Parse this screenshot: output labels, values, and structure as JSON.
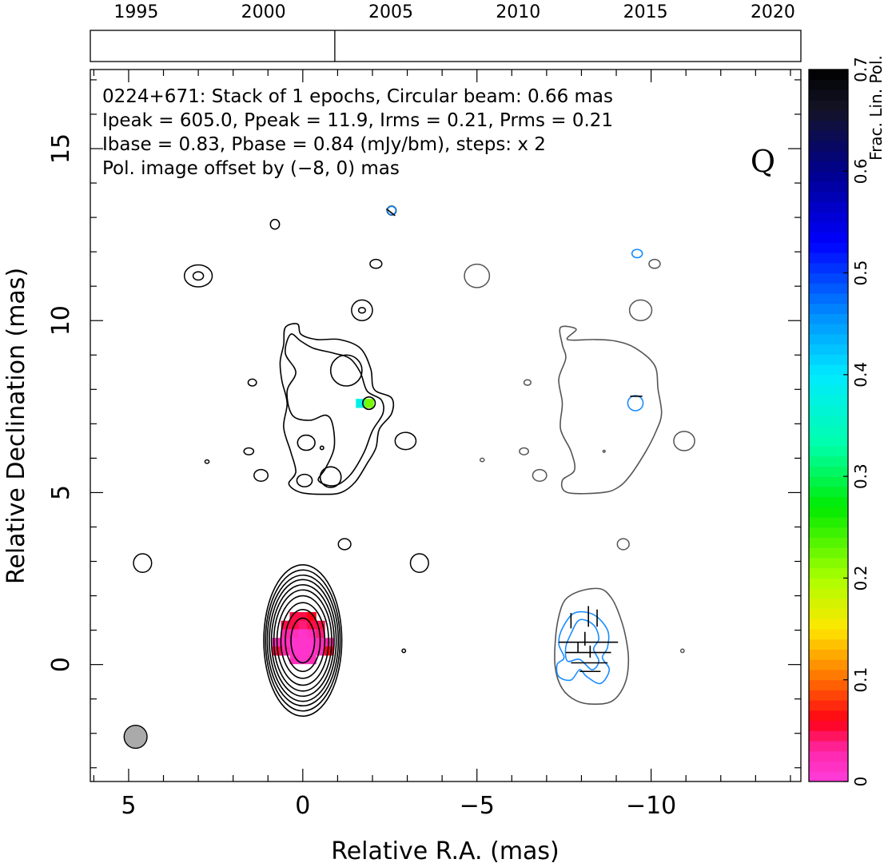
{
  "chart_data": {
    "type": "contour_map",
    "source": "0224+671",
    "band": "Q",
    "info_lines": [
      "0224+671: Stack of 1 epochs, Circular beam: 0.66 mas",
      "Ipeak = 605.0, Ppeak = 11.9, Irms = 0.21, Prms = 0.21",
      "Ibase = 0.83, Pbase = 0.84 (mJy/bm), steps: x 2"
    ],
    "offset_note": "Pol. image offset by (−8, 0) mas",
    "xlabel": "Relative R.A. (mas)",
    "ylabel": "Relative Declination (mas)",
    "xlim": [
      6.1,
      -14.3
    ],
    "ylim": [
      -3.4,
      17.3
    ],
    "x_ticks": [
      {
        "value": 5,
        "label": "5"
      },
      {
        "value": 0,
        "label": "0"
      },
      {
        "value": -5,
        "label": "−5"
      },
      {
        "value": -10,
        "label": "−10"
      }
    ],
    "y_ticks": [
      {
        "value": 0,
        "label": "0"
      },
      {
        "value": 5,
        "label": "5"
      },
      {
        "value": 10,
        "label": "10"
      },
      {
        "value": 15,
        "label": "15"
      }
    ],
    "beam": {
      "x": 4.8,
      "y": -2.1,
      "diameter_mas": 0.66
    },
    "timeline": {
      "xlim": [
        1993.2,
        2021.1
      ],
      "ticks": [
        {
          "value": 1995,
          "label": "1995"
        },
        {
          "value": 2000,
          "label": "2000"
        },
        {
          "value": 2005,
          "label": "2005"
        },
        {
          "value": 2010,
          "label": "2010"
        },
        {
          "value": 2015,
          "label": "2015"
        },
        {
          "value": 2020,
          "label": "2020"
        }
      ],
      "epochs": [
        2002.8
      ]
    },
    "colorbar": {
      "label": "Frac. Lin. Pol.",
      "range": [
        0,
        0.7
      ],
      "ticks": [
        {
          "value": 0,
          "label": "0"
        },
        {
          "value": 0.1,
          "label": "0.1"
        },
        {
          "value": 0.2,
          "label": "0.2"
        },
        {
          "value": 0.3,
          "label": "0.3"
        },
        {
          "value": 0.4,
          "label": "0.4"
        },
        {
          "value": 0.5,
          "label": "0.5"
        },
        {
          "value": 0.6,
          "label": "0.6"
        },
        {
          "value": 0.7,
          "label": "0.7"
        }
      ]
    },
    "colors": {
      "stokes_i_contour": "#000000",
      "offset_i_contour": "#555555",
      "polarization_contour": "#1a8cff",
      "evpa_tick": "#000000",
      "note_text": "#1a8cff",
      "beam_fill": "#aaaaaa"
    },
    "core": {
      "x": 0,
      "y": 0.7,
      "rx_mas": [
        0.34,
        0.5,
        0.63,
        0.74,
        0.83,
        0.9,
        0.96,
        1.02,
        1.07,
        1.12
      ],
      "ry_mas": [
        0.65,
        0.9,
        1.1,
        1.3,
        1.47,
        1.62,
        1.77,
        1.9,
        2.05,
        2.2
      ]
    },
    "polarized_core_pixels": [
      {
        "x": 0.25,
        "y": 1.4,
        "frac": 0.05
      },
      {
        "x": 0.0,
        "y": 1.4,
        "frac": 0.05
      },
      {
        "x": -0.25,
        "y": 1.4,
        "frac": 0.06
      },
      {
        "x": 0.5,
        "y": 1.15,
        "frac": 0.05
      },
      {
        "x": 0.25,
        "y": 1.15,
        "frac": 0.05
      },
      {
        "x": 0.0,
        "y": 1.15,
        "frac": 0.04
      },
      {
        "x": -0.25,
        "y": 1.15,
        "frac": 0.05
      },
      {
        "x": -0.5,
        "y": 1.15,
        "frac": 0.05
      },
      {
        "x": 0.5,
        "y": 0.9,
        "frac": 0.03
      },
      {
        "x": 0.25,
        "y": 0.9,
        "frac": 0.02
      },
      {
        "x": 0.0,
        "y": 0.9,
        "frac": 0.01
      },
      {
        "x": -0.25,
        "y": 0.9,
        "frac": 0.02
      },
      {
        "x": -0.5,
        "y": 0.9,
        "frac": 0.04
      },
      {
        "x": 0.75,
        "y": 0.65,
        "frac": 0.02
      },
      {
        "x": 0.5,
        "y": 0.65,
        "frac": 0.02
      },
      {
        "x": 0.25,
        "y": 0.65,
        "frac": 0.01
      },
      {
        "x": 0.0,
        "y": 0.65,
        "frac": 0.01
      },
      {
        "x": -0.25,
        "y": 0.65,
        "frac": 0.01
      },
      {
        "x": -0.5,
        "y": 0.65,
        "frac": 0.02
      },
      {
        "x": -0.75,
        "y": 0.65,
        "frac": 0.03
      },
      {
        "x": 0.75,
        "y": 0.4,
        "frac": 0.05
      },
      {
        "x": 0.5,
        "y": 0.4,
        "frac": 0.03
      },
      {
        "x": 0.25,
        "y": 0.4,
        "frac": 0.01
      },
      {
        "x": 0.0,
        "y": 0.4,
        "frac": 0.01
      },
      {
        "x": -0.25,
        "y": 0.4,
        "frac": 0.01
      },
      {
        "x": -0.5,
        "y": 0.4,
        "frac": 0.02
      },
      {
        "x": -0.75,
        "y": 0.4,
        "frac": 0.06
      },
      {
        "x": 0.25,
        "y": 0.15,
        "frac": 0.02
      },
      {
        "x": 0.0,
        "y": 0.15,
        "frac": 0.01
      },
      {
        "x": -0.25,
        "y": 0.15,
        "frac": 0.02
      },
      {
        "x": -1.65,
        "y": 7.6,
        "frac": 0.38
      },
      {
        "x": -1.9,
        "y": 7.6,
        "frac": 0.22
      }
    ],
    "jet_outer_contour": [
      [
        0.5,
        9.8
      ],
      [
        0.15,
        9.9
      ],
      [
        0.05,
        9.6
      ],
      [
        -0.4,
        9.45
      ],
      [
        -1.05,
        9.45
      ],
      [
        -1.65,
        9.2
      ],
      [
        -1.95,
        8.6
      ],
      [
        -2.05,
        8.0
      ],
      [
        -2.55,
        7.75
      ],
      [
        -2.55,
        7.3
      ],
      [
        -2.2,
        6.85
      ],
      [
        -2.1,
        6.3
      ],
      [
        -1.85,
        5.85
      ],
      [
        -1.5,
        5.3
      ],
      [
        -1.1,
        5.0
      ],
      [
        -0.6,
        4.95
      ],
      [
        0.05,
        5.0
      ],
      [
        0.4,
        5.25
      ],
      [
        0.2,
        5.6
      ],
      [
        0.35,
        6.2
      ],
      [
        0.55,
        6.9
      ],
      [
        0.45,
        7.6
      ],
      [
        0.6,
        8.25
      ],
      [
        0.65,
        8.8
      ],
      [
        0.55,
        9.3
      ],
      [
        0.5,
        9.8
      ]
    ],
    "jet_inner_contour": [
      [
        0.35,
        9.6
      ],
      [
        0.05,
        9.4
      ],
      [
        -0.3,
        9.2
      ],
      [
        -0.9,
        9.05
      ],
      [
        -1.35,
        8.9
      ],
      [
        -1.65,
        8.5
      ],
      [
        -1.85,
        7.95
      ],
      [
        -2.25,
        7.7
      ],
      [
        -2.3,
        7.3
      ],
      [
        -2.0,
        6.8
      ],
      [
        -1.75,
        6.15
      ],
      [
        -1.35,
        5.5
      ],
      [
        -0.9,
        5.2
      ],
      [
        -0.45,
        5.35
      ],
      [
        -0.65,
        5.7
      ],
      [
        -0.9,
        6.3
      ],
      [
        -0.85,
        7.0
      ],
      [
        -0.65,
        7.25
      ],
      [
        -0.2,
        7.1
      ],
      [
        0.3,
        7.25
      ],
      [
        0.45,
        7.95
      ],
      [
        0.2,
        8.5
      ],
      [
        0.5,
        9.05
      ],
      [
        0.35,
        9.6
      ]
    ],
    "jet_small_loops": [
      {
        "x": -1.25,
        "y": 8.55,
        "rx": 0.45,
        "ry": 0.45
      },
      {
        "x": -0.1,
        "y": 6.45,
        "rx": 0.25,
        "ry": 0.22
      },
      {
        "x": -0.05,
        "y": 5.35,
        "rx": 0.22,
        "ry": 0.18
      },
      {
        "x": -0.8,
        "y": 5.45,
        "rx": 0.3,
        "ry": 0.3
      },
      {
        "x": -1.9,
        "y": 7.6,
        "rx": 0.18,
        "ry": 0.18
      },
      {
        "x": -0.55,
        "y": 6.3,
        "rx": 0.05,
        "ry": 0.05
      }
    ],
    "noise_blobs_i": [
      {
        "x": 3.0,
        "y": 11.3,
        "rx": 0.4,
        "ry": 0.32
      },
      {
        "x": 3.0,
        "y": 11.3,
        "rx": 0.15,
        "ry": 0.12
      },
      {
        "x": 0.8,
        "y": 12.8,
        "rx": 0.13,
        "ry": 0.14
      },
      {
        "x": -2.1,
        "y": 11.65,
        "rx": 0.17,
        "ry": 0.13
      },
      {
        "x": -1.7,
        "y": 10.3,
        "rx": 0.3,
        "ry": 0.3
      },
      {
        "x": -1.7,
        "y": 10.3,
        "rx": 0.1,
        "ry": 0.08
      },
      {
        "x": -2.55,
        "y": 13.2,
        "rx": 0.13,
        "ry": 0.13
      },
      {
        "x": 1.45,
        "y": 8.2,
        "rx": 0.12,
        "ry": 0.1
      },
      {
        "x": 1.55,
        "y": 6.2,
        "rx": 0.14,
        "ry": 0.1
      },
      {
        "x": 2.75,
        "y": 5.9,
        "rx": 0.06,
        "ry": 0.05
      },
      {
        "x": 1.2,
        "y": 5.5,
        "rx": 0.2,
        "ry": 0.17
      },
      {
        "x": -2.95,
        "y": 6.5,
        "rx": 0.3,
        "ry": 0.25
      },
      {
        "x": -1.2,
        "y": 3.5,
        "rx": 0.18,
        "ry": 0.16
      },
      {
        "x": 4.6,
        "y": 2.95,
        "rx": 0.26,
        "ry": 0.27
      },
      {
        "x": -3.35,
        "y": 2.95,
        "rx": 0.26,
        "ry": 0.27
      },
      {
        "x": -2.9,
        "y": 0.4,
        "rx": 0.05,
        "ry": 0.05
      },
      {
        "x": -5.15,
        "y": 5.95,
        "rx": 0.06,
        "ry": 0.05
      },
      {
        "x": -6.45,
        "y": 8.2,
        "rx": 0.1,
        "ry": 0.08
      },
      {
        "x": -6.35,
        "y": 6.2,
        "rx": 0.13,
        "ry": 0.1
      },
      {
        "x": -6.8,
        "y": 5.5,
        "rx": 0.2,
        "ry": 0.17
      },
      {
        "x": -5.0,
        "y": 11.3,
        "rx": 0.36,
        "ry": 0.34
      },
      {
        "x": -9.7,
        "y": 10.3,
        "rx": 0.32,
        "ry": 0.3
      },
      {
        "x": -10.1,
        "y": 11.65,
        "rx": 0.16,
        "ry": 0.13
      },
      {
        "x": -10.95,
        "y": 6.5,
        "rx": 0.3,
        "ry": 0.28
      },
      {
        "x": -9.2,
        "y": 3.5,
        "rx": 0.17,
        "ry": 0.16
      },
      {
        "x": -10.9,
        "y": 0.4,
        "rx": 0.05,
        "ry": 0.05
      },
      {
        "x": -8.65,
        "y": 6.2,
        "rx": 0.03,
        "ry": 0.03
      }
    ],
    "offset_core_contour": [
      [
        -8.55,
        2.2
      ],
      [
        -8.0,
        2.15
      ],
      [
        -7.55,
        1.9
      ],
      [
        -7.35,
        1.4
      ],
      [
        -7.25,
        0.7
      ],
      [
        -7.25,
        -0.1
      ],
      [
        -7.45,
        -0.7
      ],
      [
        -7.85,
        -1.05
      ],
      [
        -8.35,
        -1.15
      ],
      [
        -8.9,
        -1.05
      ],
      [
        -9.25,
        -0.55
      ],
      [
        -9.35,
        0.15
      ],
      [
        -9.25,
        0.9
      ],
      [
        -9.05,
        1.55
      ],
      [
        -8.85,
        1.95
      ],
      [
        -8.55,
        2.2
      ]
    ],
    "offset_jet_contour": [
      [
        -7.4,
        9.8
      ],
      [
        -7.85,
        9.75
      ],
      [
        -7.6,
        9.45
      ],
      [
        -8.4,
        9.45
      ],
      [
        -9.0,
        9.4
      ],
      [
        -9.55,
        9.2
      ],
      [
        -10.1,
        8.7
      ],
      [
        -10.2,
        8.0
      ],
      [
        -10.3,
        7.3
      ],
      [
        -10.15,
        6.8
      ],
      [
        -9.85,
        6.2
      ],
      [
        -9.4,
        5.5
      ],
      [
        -9.05,
        5.15
      ],
      [
        -8.6,
        5.0
      ],
      [
        -7.6,
        5.0
      ],
      [
        -7.45,
        5.35
      ],
      [
        -7.8,
        5.65
      ],
      [
        -7.7,
        6.2
      ],
      [
        -7.4,
        6.85
      ],
      [
        -7.45,
        7.6
      ],
      [
        -7.35,
        8.3
      ],
      [
        -7.55,
        8.9
      ],
      [
        -7.45,
        9.3
      ],
      [
        -7.4,
        9.8
      ]
    ],
    "polarization_contours": [
      {
        "x": -9.55,
        "y": 7.6,
        "rx": 0.22,
        "ry": 0.22
      },
      {
        "x": -9.6,
        "y": 11.95,
        "rx": 0.15,
        "ry": 0.12
      },
      {
        "x": -2.55,
        "y": 13.2,
        "rx": 0.12,
        "ry": 0.12
      }
    ],
    "pol_core_contour_outer": [
      [
        -7.8,
        1.5
      ],
      [
        -8.35,
        1.45
      ],
      [
        -8.75,
        1.0
      ],
      [
        -8.75,
        0.5
      ],
      [
        -8.6,
        0.2
      ],
      [
        -8.8,
        -0.15
      ],
      [
        -8.55,
        -0.55
      ],
      [
        -8.15,
        -0.35
      ],
      [
        -7.95,
        -0.15
      ],
      [
        -7.7,
        -0.45
      ],
      [
        -7.35,
        -0.35
      ],
      [
        -7.3,
        0.0
      ],
      [
        -7.5,
        0.2
      ],
      [
        -7.35,
        0.6
      ],
      [
        -7.45,
        1.05
      ],
      [
        -7.8,
        1.5
      ]
    ],
    "pol_core_contour_inner": [
      [
        -7.95,
        1.3
      ],
      [
        -8.35,
        1.15
      ],
      [
        -8.5,
        0.75
      ],
      [
        -8.35,
        0.45
      ],
      [
        -8.5,
        0.1
      ],
      [
        -8.3,
        -0.15
      ],
      [
        -7.95,
        0.15
      ],
      [
        -7.6,
        0.1
      ],
      [
        -7.55,
        0.5
      ],
      [
        -7.7,
        0.9
      ],
      [
        -7.95,
        1.3
      ]
    ],
    "evpa_sticks": [
      [
        -8.2,
        1.7,
        -8.2,
        1.1
      ],
      [
        -8.45,
        1.6,
        -8.45,
        1.1
      ],
      [
        -7.7,
        1.5,
        -7.7,
        1.05
      ],
      [
        -8.1,
        0.95,
        -8.1,
        0.55
      ],
      [
        -7.9,
        0.65,
        -7.9,
        0.35
      ],
      [
        -8.25,
        0.55,
        -8.25,
        0.2
      ],
      [
        -7.35,
        0.65,
        -9.05,
        0.65
      ],
      [
        -7.55,
        0.35,
        -8.85,
        0.35
      ],
      [
        -7.7,
        0.05,
        -8.75,
        0.05
      ],
      [
        -7.95,
        -0.2,
        -8.55,
        -0.2
      ],
      [
        -9.4,
        7.8,
        -9.75,
        7.8
      ],
      [
        -2.4,
        13.25,
        -2.65,
        13.05
      ]
    ]
  }
}
